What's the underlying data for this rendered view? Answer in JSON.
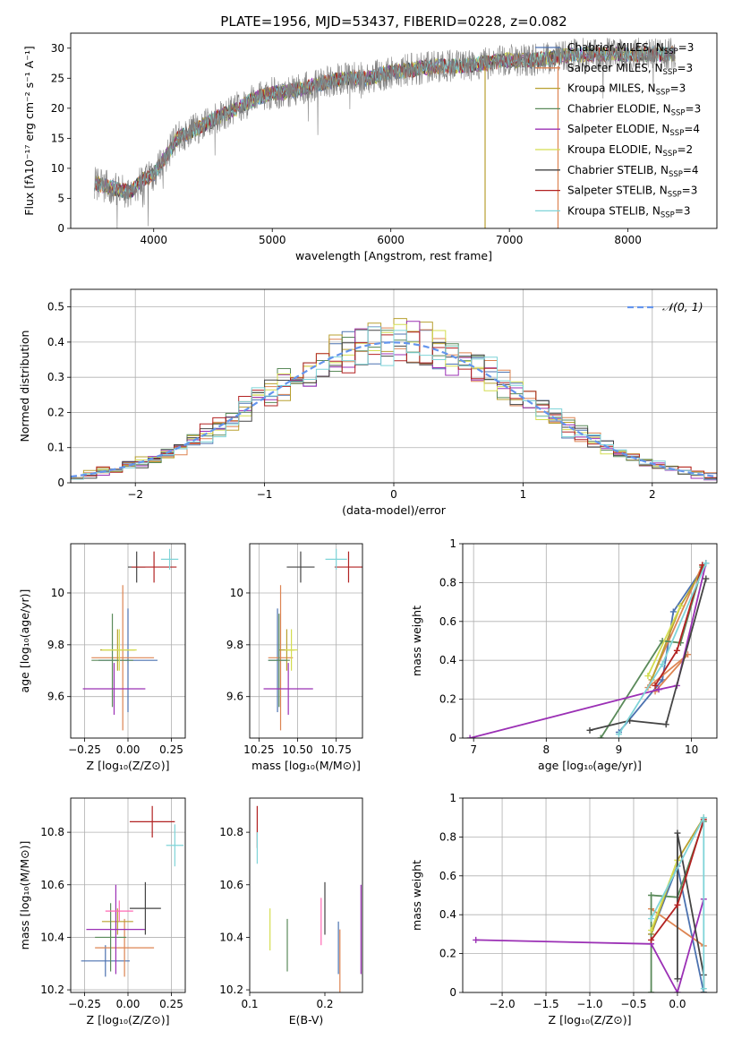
{
  "figure_title": "PLATE=1956, MJD=53437, FIBERID=0228, z=0.082",
  "chart_data": [
    {
      "id": "spectrum",
      "type": "line",
      "xlabel": "wavelength [Angstrom, rest frame]",
      "ylabel": "Flux [fλ10⁻¹⁷ erg cm⁻² s⁻¹ A⁻¹]",
      "xlim": [
        3300,
        8750
      ],
      "ylim": [
        0,
        32.5
      ],
      "xticks": [
        4000,
        5000,
        6000,
        7000,
        8000
      ],
      "yticks": [
        0,
        5,
        10,
        15,
        20,
        25,
        30
      ],
      "grid": false,
      "legend_position": "top-right",
      "data_envelope": {
        "x": [
          3500,
          3600,
          3700,
          3800,
          3900,
          4000,
          4100,
          4200,
          4300,
          4400,
          4500,
          4600,
          4700,
          4800,
          4900,
          5000,
          5200,
          5400,
          5600,
          5800,
          6000,
          6200,
          6400,
          6600,
          6800,
          7000,
          7200,
          7400,
          7600,
          7800,
          8000,
          8200,
          8400
        ],
        "y": [
          7.5,
          7,
          6.5,
          6,
          8,
          9,
          12,
          15,
          16,
          17,
          18,
          19,
          20,
          21,
          22,
          22.5,
          23,
          24,
          25,
          25,
          26,
          26.5,
          27,
          27,
          27.5,
          28,
          28,
          28.5,
          29,
          29,
          29,
          29,
          29
        ]
      },
      "series": [
        {
          "name": "Chabrier MILES, N",
          "sub": "SSP",
          "suffix": "=3",
          "color": "#4c72b0"
        },
        {
          "name": "Salpeter MILES, N",
          "sub": "SSP",
          "suffix": "=3",
          "color": "#dd8452"
        },
        {
          "name": "Kroupa MILES, N",
          "sub": "SSP",
          "suffix": "=3",
          "color": "#b8a030"
        },
        {
          "name": "Chabrier ELODIE, N",
          "sub": "SSP",
          "suffix": "=3",
          "color": "#5a8a5a"
        },
        {
          "name": "Salpeter ELODIE, N",
          "sub": "SSP",
          "suffix": "=4",
          "color": "#9b30b5"
        },
        {
          "name": "Kroupa ELODIE, N",
          "sub": "SSP",
          "suffix": "=2",
          "color": "#d4dd50"
        },
        {
          "name": "Chabrier STELIB, N",
          "sub": "SSP",
          "suffix": "=4",
          "color": "#444444"
        },
        {
          "name": "Salpeter STELIB, N",
          "sub": "SSP",
          "suffix": "=3",
          "color": "#b22222"
        },
        {
          "name": "Kroupa STELIB, N",
          "sub": "SSP",
          "suffix": "=3",
          "color": "#7fd4d8"
        }
      ]
    },
    {
      "id": "residuals",
      "type": "line",
      "xlabel": "(data-model)/error",
      "ylabel": "Normed distribution",
      "xlim": [
        -2.5,
        2.5
      ],
      "ylim": [
        0,
        0.55
      ],
      "xticks": [
        -2,
        -1,
        0,
        1,
        2
      ],
      "xtick_labels": [
        "−2",
        "−1",
        "0",
        "1",
        "2"
      ],
      "yticks": [
        0,
        0.1,
        0.2,
        0.3,
        0.4,
        0.5
      ],
      "grid": true,
      "legend_position": "top-right",
      "legend": "𝒩(0, 1)",
      "reference_curve": {
        "name": "N(0,1)",
        "color": "#6495ed",
        "style": "dashed"
      },
      "hist_bins": {
        "start": -2.5,
        "width": 0.1
      }
    },
    {
      "id": "age_vs_Z",
      "type": "scatter",
      "xlabel": "Z [log₁₀(Z/Z⊙)]",
      "ylabel": "age  [log₁₀(age/yr)]",
      "xlim": [
        -0.33,
        0.33
      ],
      "ylim": [
        9.44,
        10.19
      ],
      "xticks": [
        -0.25,
        0,
        0.25
      ],
      "xtick_labels": [
        "−0.25",
        "0.00",
        "0.25"
      ],
      "yticks": [
        9.6,
        9.8,
        10.0
      ],
      "grid": true,
      "points": [
        {
          "x": 0.0,
          "y": 9.74,
          "xerr": 0.17,
          "yerr": 0.2,
          "color": "#4c72b0"
        },
        {
          "x": -0.03,
          "y": 9.75,
          "xerr": 0.18,
          "yerr": 0.28,
          "color": "#dd8452"
        },
        {
          "x": -0.06,
          "y": 9.78,
          "xerr": 0.1,
          "yerr": 0.08,
          "color": "#b8a030"
        },
        {
          "x": -0.09,
          "y": 9.74,
          "xerr": 0.12,
          "yerr": 0.18,
          "color": "#5a8a5a"
        },
        {
          "x": -0.08,
          "y": 9.63,
          "xerr": 0.18,
          "yerr": 0.1,
          "color": "#9b30b5"
        },
        {
          "x": -0.05,
          "y": 9.78,
          "xerr": 0.1,
          "yerr": 0.08,
          "color": "#d4dd50"
        },
        {
          "x": 0.05,
          "y": 10.1,
          "xerr": 0.05,
          "yerr": 0.06,
          "color": "#444444"
        },
        {
          "x": 0.15,
          "y": 10.1,
          "xerr": 0.13,
          "yerr": 0.06,
          "color": "#b22222"
        },
        {
          "x": 0.24,
          "y": 10.13,
          "xerr": 0.05,
          "yerr": 0.04,
          "color": "#7fd4d8"
        }
      ]
    },
    {
      "id": "age_vs_mass",
      "type": "scatter",
      "xlabel": "mass [log₁₀(M/M⊙)]",
      "ylabel": "",
      "xlim": [
        10.19,
        10.92
      ],
      "ylim": [
        9.44,
        10.19
      ],
      "xticks": [
        10.25,
        10.5,
        10.75
      ],
      "xtick_labels": [
        "10.25",
        "10.50",
        "10.75"
      ],
      "yticks": [
        9.6,
        9.8,
        10.0
      ],
      "grid": true,
      "points": [
        {
          "x": 10.37,
          "y": 9.74,
          "xerr": 0.06,
          "yerr": 0.2,
          "color": "#4c72b0"
        },
        {
          "x": 10.39,
          "y": 9.75,
          "xerr": 0.08,
          "yerr": 0.28,
          "color": "#dd8452"
        },
        {
          "x": 10.43,
          "y": 9.78,
          "xerr": 0.05,
          "yerr": 0.08,
          "color": "#b8a030"
        },
        {
          "x": 10.38,
          "y": 9.74,
          "xerr": 0.07,
          "yerr": 0.18,
          "color": "#5a8a5a"
        },
        {
          "x": 10.44,
          "y": 9.63,
          "xerr": 0.16,
          "yerr": 0.1,
          "color": "#9b30b5"
        },
        {
          "x": 10.46,
          "y": 9.78,
          "xerr": 0.04,
          "yerr": 0.08,
          "color": "#d4dd50"
        },
        {
          "x": 10.52,
          "y": 10.1,
          "xerr": 0.09,
          "yerr": 0.06,
          "color": "#444444"
        },
        {
          "x": 10.83,
          "y": 10.1,
          "xerr": 0.09,
          "yerr": 0.06,
          "color": "#b22222"
        },
        {
          "x": 10.75,
          "y": 10.13,
          "xerr": 0.07,
          "yerr": 0.04,
          "color": "#7fd4d8"
        }
      ]
    },
    {
      "id": "weight_vs_age",
      "type": "line",
      "xlabel": "age  [log₁₀(age/yr)]",
      "ylabel": "mass weight",
      "xlim": [
        6.85,
        10.35
      ],
      "ylim": [
        0,
        1.0
      ],
      "xticks": [
        7,
        8,
        9,
        10
      ],
      "yticks": [
        0,
        0.2,
        0.4,
        0.6,
        0.8,
        1.0
      ],
      "grid": true,
      "series": [
        {
          "color": "#4c72b0",
          "x": [
            9.0,
            9.6,
            9.75,
            10.2
          ],
          "y": [
            0.03,
            0.3,
            0.65,
            0.9
          ]
        },
        {
          "color": "#dd8452",
          "x": [
            9.5,
            9.95,
            9.4,
            10.15
          ],
          "y": [
            0.24,
            0.43,
            0.26,
            0.89
          ]
        },
        {
          "color": "#b8a030",
          "x": [
            9.45,
            9.85,
            10.2
          ],
          "y": [
            0.3,
            0.68,
            0.9
          ]
        },
        {
          "color": "#5a8a5a",
          "x": [
            8.75,
            9.6,
            9.85,
            10.15
          ],
          "y": [
            0.0,
            0.5,
            0.49,
            0.88
          ]
        },
        {
          "color": "#9b30b5",
          "x": [
            6.95,
            9.55,
            9.8,
            10.2
          ],
          "y": [
            0.0,
            0.25,
            0.27,
            0.9
          ]
        },
        {
          "color": "#d4dd50",
          "x": [
            9.4,
            9.85
          ],
          "y": [
            0.32,
            0.68
          ]
        },
        {
          "color": "#444444",
          "x": [
            8.6,
            9.15,
            9.65,
            10.2
          ],
          "y": [
            0.04,
            0.09,
            0.07,
            0.82
          ]
        },
        {
          "color": "#b22222",
          "x": [
            9.5,
            9.8,
            10.15
          ],
          "y": [
            0.27,
            0.45,
            0.89
          ]
        },
        {
          "color": "#7fd4d8",
          "x": [
            9.0,
            9.6,
            10.2
          ],
          "y": [
            0.02,
            0.38,
            0.9
          ]
        }
      ]
    },
    {
      "id": "mass_vs_Z",
      "type": "scatter",
      "xlabel": "Z [log₁₀(Z/Z⊙)]",
      "ylabel": "mass [log₁₀(M/M⊙)]",
      "xlim": [
        -0.33,
        0.33
      ],
      "ylim": [
        10.19,
        10.93
      ],
      "xticks": [
        -0.25,
        0,
        0.25
      ],
      "xtick_labels": [
        "−0.25",
        "0.00",
        "0.25"
      ],
      "yticks": [
        10.2,
        10.4,
        10.6,
        10.8
      ],
      "grid": true,
      "points": [
        {
          "x": -0.13,
          "y": 10.31,
          "xerr": 0.14,
          "yerr": 0.06,
          "color": "#4c72b0"
        },
        {
          "x": -0.02,
          "y": 10.36,
          "xerr": 0.17,
          "yerr": 0.11,
          "color": "#dd8452"
        },
        {
          "x": -0.06,
          "y": 10.46,
          "xerr": 0.09,
          "yerr": 0.05,
          "color": "#b8a030"
        },
        {
          "x": -0.1,
          "y": 10.4,
          "xerr": 0.09,
          "yerr": 0.13,
          "color": "#5a8a5a"
        },
        {
          "x": -0.07,
          "y": 10.43,
          "xerr": 0.17,
          "yerr": 0.17,
          "color": "#9b30b5"
        },
        {
          "x": -0.05,
          "y": 10.5,
          "xerr": 0.08,
          "yerr": 0.04,
          "color": "#ff69b4"
        },
        {
          "x": 0.1,
          "y": 10.51,
          "xerr": 0.09,
          "yerr": 0.1,
          "color": "#444444"
        },
        {
          "x": 0.14,
          "y": 10.84,
          "xerr": 0.13,
          "yerr": 0.06,
          "color": "#b22222"
        },
        {
          "x": 0.27,
          "y": 10.75,
          "xerr": 0.05,
          "yerr": 0.08,
          "color": "#7fd4d8"
        }
      ]
    },
    {
      "id": "mass_vs_ebv",
      "type": "scatter",
      "xlabel": "E(B-V)",
      "ylabel": "",
      "xlim": [
        0.1,
        0.25
      ],
      "ylim": [
        10.19,
        10.93
      ],
      "xticks": [
        0.1,
        0.2
      ],
      "xtick_labels": [
        "0.1",
        "0.2"
      ],
      "yticks": [
        10.2,
        10.4,
        10.6,
        10.8
      ],
      "grid": false,
      "points": [
        {
          "x": 0.11,
          "y": 10.82,
          "yerr": 0.08,
          "color": "#b22222"
        },
        {
          "x": 0.11,
          "y": 10.74,
          "yerr": 0.06,
          "color": "#7fd4d8"
        },
        {
          "x": 0.127,
          "y": 10.43,
          "yerr": 0.08,
          "color": "#d4dd50"
        },
        {
          "x": 0.15,
          "y": 10.37,
          "yerr": 0.1,
          "color": "#5a8a5a"
        },
        {
          "x": 0.195,
          "y": 10.46,
          "yerr": 0.09,
          "color": "#ff69b4"
        },
        {
          "x": 0.2,
          "y": 10.51,
          "yerr": 0.1,
          "color": "#444444"
        },
        {
          "x": 0.218,
          "y": 10.36,
          "yerr": 0.1,
          "color": "#4c72b0"
        },
        {
          "x": 0.22,
          "y": 10.31,
          "yerr": 0.12,
          "color": "#dd8452"
        },
        {
          "x": 0.248,
          "y": 10.43,
          "yerr": 0.17,
          "color": "#9b30b5"
        }
      ]
    },
    {
      "id": "weight_vs_Z",
      "type": "line",
      "xlabel": "Z [log₁₀(Z/Z⊙)]",
      "ylabel": "mass weight",
      "xlim": [
        -2.45,
        0.45
      ],
      "ylim": [
        0,
        1.0
      ],
      "xticks": [
        -2.0,
        -1.5,
        -1.0,
        -0.5,
        0.0
      ],
      "xtick_labels": [
        "−2.0",
        "−1.5",
        "−1.0",
        "−0.5",
        "0.0"
      ],
      "yticks": [
        0,
        0.2,
        0.4,
        0.6,
        0.8,
        1.0
      ],
      "grid": true,
      "series": [
        {
          "color": "#4c72b0",
          "x": [
            -0.3,
            0.0,
            0.3
          ],
          "y": [
            0.3,
            0.65,
            0.0
          ]
        },
        {
          "color": "#dd8452",
          "x": [
            -0.3,
            0.3
          ],
          "y": [
            0.43,
            0.24
          ]
        },
        {
          "color": "#b8a030",
          "x": [
            -0.3,
            0.0,
            0.3
          ],
          "y": [
            0.3,
            0.68,
            0.9
          ]
        },
        {
          "color": "#5a8a5a",
          "x": [
            -0.3,
            -0.3,
            0.0,
            0.3
          ],
          "y": [
            0.0,
            0.5,
            0.49,
            0.88
          ]
        },
        {
          "color": "#9b30b5",
          "x": [
            -2.3,
            -0.3,
            0.0,
            0.3
          ],
          "y": [
            0.27,
            0.25,
            0.0,
            0.48
          ]
        },
        {
          "color": "#d4dd50",
          "x": [
            -0.3,
            0.0
          ],
          "y": [
            0.32,
            0.68
          ]
        },
        {
          "color": "#444444",
          "x": [
            0.0,
            0.0,
            0.3,
            0.3
          ],
          "y": [
            0.07,
            0.82,
            0.09,
            0.0
          ]
        },
        {
          "color": "#b22222",
          "x": [
            -0.3,
            0.0,
            0.3
          ],
          "y": [
            0.27,
            0.45,
            0.89
          ]
        },
        {
          "color": "#7fd4d8",
          "x": [
            -0.3,
            0.3,
            0.3
          ],
          "y": [
            0.38,
            0.9,
            0.02
          ]
        }
      ]
    }
  ]
}
